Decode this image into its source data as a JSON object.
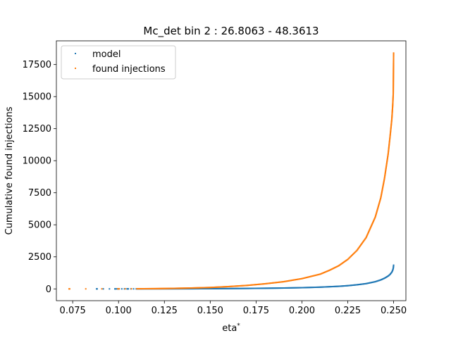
{
  "chart_data": {
    "type": "scatter",
    "title": "Mc_det bin 2 : 26.8063 - 48.3613",
    "xlabel": "eta",
    "xlabel_sup": "*",
    "ylabel": "Cumulative found injections",
    "xlim": [
      0.0661,
      0.2567
    ],
    "ylim": [
      -920,
      19350
    ],
    "xticks": [
      "0.075",
      "0.100",
      "0.125",
      "0.150",
      "0.175",
      "0.200",
      "0.225",
      "0.250"
    ],
    "xtick_values": [
      0.075,
      0.1,
      0.125,
      0.15,
      0.175,
      0.2,
      0.225,
      0.25
    ],
    "yticks": [
      "0",
      "2500",
      "5000",
      "7500",
      "10000",
      "12500",
      "15000",
      "17500"
    ],
    "ytick_values": [
      0,
      2500,
      5000,
      7500,
      10000,
      12500,
      15000,
      17500
    ],
    "legend_position": "upper-left",
    "series": [
      {
        "name": "model",
        "color": "#1f77b4",
        "x": [
          0.088,
          0.098,
          0.1,
          0.105,
          0.11,
          0.12,
          0.13,
          0.14,
          0.15,
          0.16,
          0.17,
          0.18,
          0.19,
          0.2,
          0.21,
          0.22,
          0.225,
          0.23,
          0.235,
          0.24,
          0.243,
          0.245,
          0.247,
          0.248,
          0.249,
          0.2495,
          0.2498,
          0.25
        ],
        "y": [
          0,
          0,
          1,
          1,
          2,
          4,
          7,
          11,
          17,
          25,
          35,
          49,
          68,
          95,
          135,
          200,
          250,
          320,
          410,
          560,
          700,
          830,
          1000,
          1120,
          1300,
          1450,
          1600,
          1850
        ]
      },
      {
        "name": "found injections",
        "color": "#ff7f0e",
        "x": [
          0.073,
          0.1,
          0.11,
          0.12,
          0.13,
          0.14,
          0.15,
          0.16,
          0.17,
          0.18,
          0.19,
          0.2,
          0.21,
          0.215,
          0.22,
          0.225,
          0.23,
          0.235,
          0.24,
          0.243,
          0.245,
          0.247,
          0.248,
          0.249,
          0.2495,
          0.2498,
          0.25
        ],
        "y": [
          0,
          5,
          10,
          20,
          40,
          70,
          110,
          180,
          270,
          400,
          560,
          800,
          1150,
          1450,
          1800,
          2300,
          3000,
          4000,
          5600,
          7100,
          8600,
          10500,
          11800,
          13200,
          14300,
          15200,
          18400
        ]
      }
    ]
  }
}
